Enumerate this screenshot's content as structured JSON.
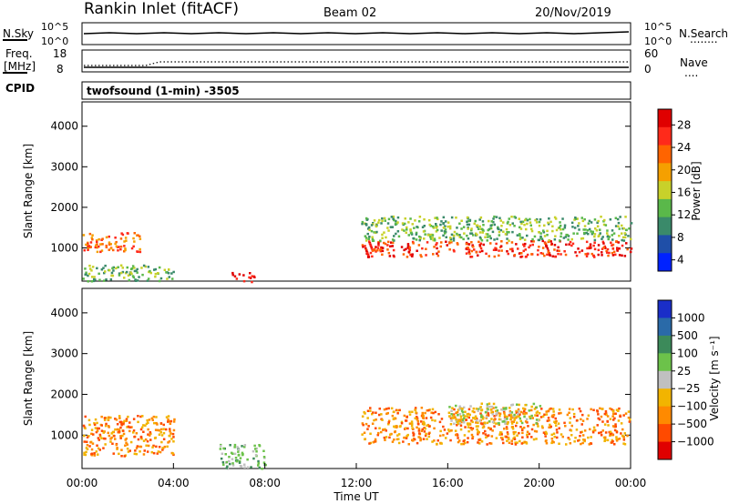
{
  "header": {
    "station": "Rankin Inlet (fitACF)",
    "beam": "Beam 02",
    "date": "20/Nov/2019"
  },
  "noise_panel": {
    "left_label": "N.Sky",
    "left_ticks": [
      "10^5",
      "10^0"
    ],
    "right_ticks": [
      "10^5",
      "10^0"
    ],
    "right_label": "N.Search",
    "right_dots": "........"
  },
  "freq_panel": {
    "left_label_line1": "Freq.",
    "left_label_line2": "[MHz]",
    "left_ticks": [
      "18",
      "8"
    ],
    "right_ticks": [
      "60",
      "0"
    ],
    "right_label": "Nave",
    "right_dots": "....",
    "cpid_label": "CPID",
    "program": "twofsound (1-min) -3505"
  },
  "chart_data": [
    {
      "type": "heatmap",
      "title": "",
      "ylabel": "Slant Range [km]",
      "xlabel": "",
      "ylim": [
        180,
        4600
      ],
      "yticks": [
        "1000",
        "2000",
        "3000",
        "4000"
      ],
      "colorbar_label": "Power [dB]",
      "colorbar_ticks": [
        "4",
        "8",
        "12",
        "16",
        "20",
        "24",
        "28"
      ],
      "colors": [
        "#0022ff",
        "#1f4fa8",
        "#3a8a6a",
        "#5ab84a",
        "#c8d12a",
        "#f5a000",
        "#ff6400",
        "#ff2a1a",
        "#e00000"
      ],
      "regions": [
        {
          "t_start": 0.0,
          "t_end": 2.5,
          "r_low": 900,
          "r_high": 1400,
          "value": 20
        },
        {
          "t_start": 0.0,
          "t_end": 4.0,
          "r_low": 200,
          "r_high": 600,
          "value": 10
        },
        {
          "t_start": 6.5,
          "t_end": 7.5,
          "r_low": 180,
          "r_high": 420,
          "value": 26
        },
        {
          "t_start": 12.2,
          "t_end": 24.0,
          "r_low": 800,
          "r_high": 1200,
          "value": 24
        },
        {
          "t_start": 12.2,
          "t_end": 24.0,
          "r_low": 1200,
          "r_high": 1800,
          "value": 10
        }
      ]
    },
    {
      "type": "heatmap",
      "title": "",
      "ylabel": "Slant Range [km]",
      "xlabel": "Time UT",
      "ylim": [
        180,
        4600
      ],
      "yticks": [
        "1000",
        "2000",
        "3000",
        "4000"
      ],
      "xticks": [
        "00:00",
        "04:00",
        "08:00",
        "12:00",
        "16:00",
        "20:00",
        "00:00"
      ],
      "colorbar_label": "Velocity [m s⁻¹]",
      "colorbar_ticks": [
        "1000",
        "500",
        "100",
        "25",
        "−25",
        "−100",
        "−500",
        "−1000"
      ],
      "colors": [
        "#1a2ec8",
        "#2a6aa8",
        "#3c8a5a",
        "#6cc24a",
        "#c0c0c0",
        "#f2b400",
        "#ff8a00",
        "#ff4a00",
        "#e00000"
      ],
      "regions": [
        {
          "t_start": 0.0,
          "t_end": 4.0,
          "r_low": 500,
          "r_high": 1500,
          "value": -100
        },
        {
          "t_start": 6.0,
          "t_end": 8.0,
          "r_low": 200,
          "r_high": 800,
          "value": 25
        },
        {
          "t_start": 12.2,
          "t_end": 24.0,
          "r_low": 800,
          "r_high": 1700,
          "value": -100
        },
        {
          "t_start": 16.0,
          "t_end": 20.0,
          "r_low": 1300,
          "r_high": 1800,
          "value": 0
        }
      ]
    }
  ]
}
